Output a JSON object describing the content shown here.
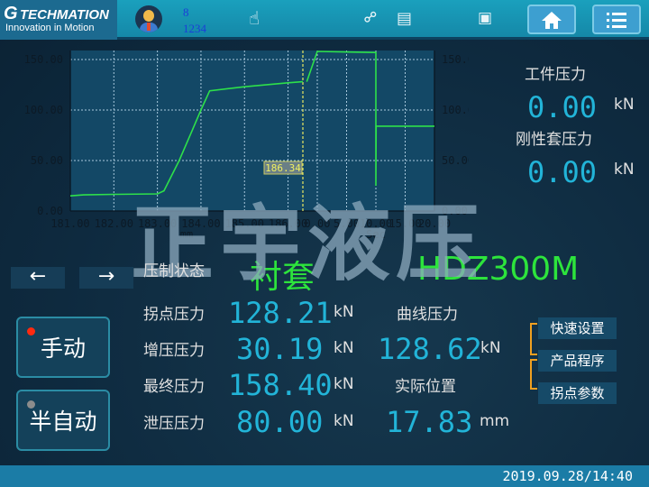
{
  "header": {
    "logo_title": "TECHMATION",
    "logo_tagline": "Innovation in Motion",
    "user_level": "8",
    "user_id": "1234",
    "icons": [
      "avatar-icon",
      "hand-pointer-icon",
      "disconnected-plug-icon",
      "motor-icon",
      "monitor-settings-icon",
      "home-icon",
      "menu-list-icon"
    ]
  },
  "watermark": "正宇液压",
  "chart_data": {
    "type": "line",
    "left_axis": {
      "yticks": [
        "0.00",
        "50.00",
        "100.00",
        "150.00"
      ],
      "ylim": [
        0,
        150
      ]
    },
    "right_axis": {
      "yticks": [
        "0.00",
        "50.00",
        "100.00",
        "150.00"
      ],
      "ylim": [
        0,
        150
      ]
    },
    "x_segments": [
      {
        "xlabel": "mm",
        "xticks": [
          "181.00",
          "182.00",
          "183.00",
          "184.00",
          "185.00",
          "186.00"
        ],
        "xlim": [
          181,
          186.34
        ]
      },
      {
        "xlabel": "Sec",
        "xticks": [
          "0.00",
          "5.00",
          "10.00",
          "15.00",
          "20.00"
        ],
        "xlim": [
          0,
          20
        ]
      }
    ],
    "cursor_value": "186.34",
    "grid": true,
    "series": [
      {
        "segment": 0,
        "color": "#2ee04a",
        "x": [
          181.0,
          181.3,
          182.0,
          183.0,
          183.15,
          183.5,
          183.8,
          184.0,
          184.2,
          185.0,
          186.0,
          186.34
        ],
        "y": [
          15,
          16,
          16.5,
          17,
          20,
          50,
          80,
          100,
          119,
          123,
          127,
          128
        ]
      },
      {
        "segment": 1,
        "color": "#2ee04a",
        "x": [
          -1.8,
          0,
          10,
          10,
          10,
          10.05,
          20
        ],
        "y": [
          128,
          158,
          157,
          157,
          25,
          84,
          84
        ]
      }
    ]
  },
  "readouts": {
    "workpiece_label": "工件压力",
    "workpiece_value": "0.00",
    "workpiece_unit": "kN",
    "sleeve_label": "刚性套压力",
    "sleeve_value": "0.00",
    "sleeve_unit": "kN"
  },
  "nav": {
    "prev": "←",
    "next": "→"
  },
  "status": {
    "label": "压制状态",
    "value": "衬套",
    "model": "HDZ300M"
  },
  "params": [
    {
      "label": "拐点压力",
      "value": "128.21",
      "unit": "kN"
    },
    {
      "label": "增压压力",
      "value": "30.19",
      "unit": "kN"
    },
    {
      "label": "最终压力",
      "value": "158.40",
      "unit": "kN"
    },
    {
      "label": "泄压压力",
      "value": "80.00",
      "unit": "kN"
    }
  ],
  "curve": {
    "label": "曲线压力",
    "value": "128.62",
    "unit": "kN"
  },
  "position": {
    "label": "实际位置",
    "value": "17.83",
    "unit": "mm"
  },
  "modes": {
    "manual": "手动",
    "manual_led": "#ff2a10",
    "semi_auto": "半自动",
    "semi_auto_led": "#8c8c8c"
  },
  "side_buttons": [
    "快速设置",
    "产品程序",
    "拐点参数"
  ],
  "footer": {
    "datetime": "2019.09.28/14:40"
  }
}
